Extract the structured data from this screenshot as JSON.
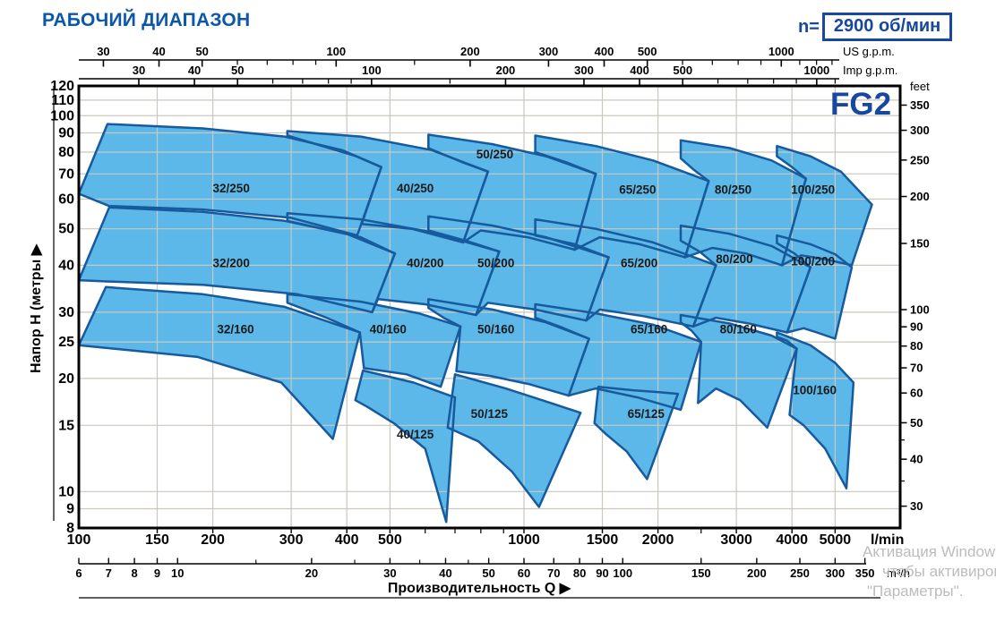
{
  "header": {
    "title": "РАБОЧИЙ ДИАПАЗОН",
    "speed_label": "n=",
    "speed_value": "2900 об/мин"
  },
  "model_label": "FG2",
  "watermark": {
    "line1": "Активация Windows",
    "line2": "чтобы активировать",
    "line3": "\"Параметры\"."
  },
  "colors": {
    "title_blue": "#0d57a9",
    "accent_blue": "#17479e",
    "region_fill": "#5bb8e8",
    "region_stroke": "#175a9d",
    "grid": "#ccc7bf",
    "axis_black": "#000000",
    "label_dark": "#1a1a1a",
    "watermark_gray": "#bcbcbc"
  },
  "chart_data": {
    "type": "area",
    "title": "РАБОЧИЙ ДИАПАЗОН",
    "x_label": "Производительность Q  ▶",
    "x_range_lmin": [
      100,
      7000
    ],
    "y_range_m": [
      8,
      120
    ],
    "axes": {
      "us_gpm": {
        "unit": "US g.p.m.",
        "factor_to_lmin": 3.785,
        "majors": [
          30,
          40,
          50,
          100,
          200,
          300,
          400,
          500,
          1000
        ],
        "minors": [
          60,
          70,
          80,
          90,
          150,
          600,
          700,
          800,
          900,
          1100,
          1200,
          1300,
          1400,
          1500
        ]
      },
      "imp_gpm": {
        "unit": "Imp g.p.m.",
        "factor_to_lmin": 4.546,
        "majors": [
          30,
          40,
          50,
          100,
          200,
          300,
          400,
          500,
          1000
        ],
        "minors": [
          60,
          70,
          80,
          90,
          150,
          600,
          700,
          800,
          900,
          1100,
          1200
        ]
      },
      "lmin": {
        "unit": "l/min",
        "majors": [
          100,
          150,
          200,
          300,
          400,
          500,
          1000,
          1500,
          2000,
          3000,
          4000,
          5000
        ],
        "minors": [
          600,
          700,
          800,
          900,
          2500
        ]
      },
      "m3h": {
        "unit": "m³/h",
        "factor_to_lmin": 16.6667,
        "majors": [
          6,
          7,
          8,
          9,
          10,
          20,
          30,
          40,
          50,
          60,
          70,
          80,
          90,
          100,
          150,
          200,
          250,
          300,
          350
        ],
        "minors": [
          15,
          25,
          35,
          45
        ]
      },
      "meters": {
        "label": "Напор H (метры  ▶",
        "majors": [
          120,
          110,
          100,
          90,
          80,
          70,
          60,
          50,
          40,
          30,
          25,
          20,
          15,
          10,
          9,
          8
        ]
      },
      "feet": {
        "unit": "feet",
        "factor_to_m": 0.3048,
        "majors": [
          350,
          300,
          250,
          200,
          150,
          100,
          90,
          80,
          70,
          60,
          50,
          40,
          30
        ],
        "minors": [
          45,
          35
        ]
      }
    },
    "grid": {
      "v_lmin": [
        150,
        200,
        300,
        400,
        500,
        1000,
        1500,
        2000,
        3000,
        4000,
        5000
      ],
      "h_m": [
        110,
        100,
        90,
        80,
        70,
        60,
        50,
        40,
        30,
        25,
        20,
        15,
        10,
        9
      ]
    },
    "regions": [
      {
        "name": "32/250",
        "label_at": [
          220,
          64
        ],
        "polygon_q_h": [
          [
            100,
            62
          ],
          [
            116,
            95
          ],
          [
            190,
            92.5
          ],
          [
            290,
            88
          ],
          [
            390,
            81
          ],
          [
            478,
            73
          ],
          [
            422,
            48
          ],
          [
            300,
            53.5
          ],
          [
            190,
            56.3
          ],
          [
            117,
            57.5
          ]
        ]
      },
      {
        "name": "40/250",
        "label_at": [
          570,
          64
        ],
        "polygon_q_h": [
          [
            294,
            91
          ],
          [
            430,
            88
          ],
          [
            620,
            81
          ],
          [
            830,
            71
          ],
          [
            730,
            46
          ],
          [
            560,
            50
          ],
          [
            432,
            51.5
          ],
          [
            478,
            73
          ],
          [
            420,
            78
          ],
          [
            294,
            88.5
          ]
        ]
      },
      {
        "name": "50/250",
        "label_at": [
          860,
          79
        ],
        "polygon_q_h": [
          [
            610,
            89
          ],
          [
            850,
            84
          ],
          [
            1120,
            78
          ],
          [
            1450,
            70
          ],
          [
            1300,
            44
          ],
          [
            1020,
            47.5
          ],
          [
            800,
            49.5
          ],
          [
            730,
            46
          ],
          [
            830,
            71
          ],
          [
            730,
            75
          ],
          [
            610,
            82
          ]
        ]
      },
      {
        "name": "65/250",
        "label_at": [
          1800,
          63.5
        ],
        "polygon_q_h": [
          [
            1060,
            88.5
          ],
          [
            1450,
            83
          ],
          [
            1950,
            76
          ],
          [
            2600,
            67
          ],
          [
            2300,
            42
          ],
          [
            1820,
            45.5
          ],
          [
            1480,
            47.5
          ],
          [
            1300,
            44
          ],
          [
            1450,
            70
          ],
          [
            1250,
            75
          ],
          [
            1060,
            80
          ]
        ]
      },
      {
        "name": "80/250",
        "label_at": [
          2950,
          63.5
        ],
        "polygon_q_h": [
          [
            2250,
            86
          ],
          [
            2900,
            82
          ],
          [
            3600,
            76
          ],
          [
            4300,
            68
          ],
          [
            3800,
            40
          ],
          [
            3150,
            43
          ],
          [
            2650,
            44.5
          ],
          [
            2300,
            42
          ],
          [
            2600,
            67
          ],
          [
            2400,
            72
          ],
          [
            2250,
            77
          ]
        ]
      },
      {
        "name": "100/250",
        "label_at": [
          4460,
          63.5
        ],
        "polygon_q_h": [
          [
            3700,
            83
          ],
          [
            4400,
            78
          ],
          [
            5150,
            71
          ],
          [
            6050,
            58
          ],
          [
            5450,
            40
          ],
          [
            4750,
            41.5
          ],
          [
            4200,
            42.5
          ],
          [
            3800,
            40
          ],
          [
            4300,
            68
          ],
          [
            4000,
            73
          ],
          [
            3700,
            78
          ]
        ]
      },
      {
        "name": "32/200",
        "label_at": [
          220,
          40.5
        ],
        "polygon_q_h": [
          [
            100,
            36.5
          ],
          [
            117,
            57
          ],
          [
            190,
            55.5
          ],
          [
            290,
            52.5
          ],
          [
            400,
            48.5
          ],
          [
            513,
            43
          ],
          [
            456,
            30
          ],
          [
            310,
            33.5
          ],
          [
            190,
            35.5
          ],
          [
            117,
            36.2
          ]
        ]
      },
      {
        "name": "40/200",
        "label_at": [
          600,
          40.5
        ],
        "polygon_q_h": [
          [
            294,
            55
          ],
          [
            430,
            53
          ],
          [
            620,
            49
          ],
          [
            880,
            43.5
          ],
          [
            780,
            29.5
          ],
          [
            600,
            31.5
          ],
          [
            470,
            32.5
          ],
          [
            456,
            30
          ],
          [
            513,
            43
          ],
          [
            430,
            47.5
          ],
          [
            294,
            52.5
          ]
        ]
      },
      {
        "name": "50/200",
        "label_at": [
          865,
          40.5
        ],
        "polygon_q_h": [
          [
            610,
            54
          ],
          [
            850,
            51
          ],
          [
            1120,
            47.5
          ],
          [
            1550,
            42
          ],
          [
            1380,
            28.5
          ],
          [
            1060,
            30.5
          ],
          [
            830,
            31.8
          ],
          [
            780,
            29.5
          ],
          [
            880,
            43.5
          ],
          [
            740,
            46.5
          ],
          [
            610,
            49.5
          ]
        ]
      },
      {
        "name": "65/200",
        "label_at": [
          1815,
          40.5
        ],
        "polygon_q_h": [
          [
            1060,
            53
          ],
          [
            1450,
            50
          ],
          [
            1950,
            46
          ],
          [
            2700,
            40
          ],
          [
            2400,
            27.5
          ],
          [
            1850,
            29.3
          ],
          [
            1480,
            30.5
          ],
          [
            1380,
            28.5
          ],
          [
            1550,
            42
          ],
          [
            1300,
            45.5
          ],
          [
            1060,
            48
          ]
        ]
      },
      {
        "name": "80/200",
        "label_at": [
          2970,
          41.5
        ],
        "polygon_q_h": [
          [
            2250,
            51
          ],
          [
            2900,
            48.5
          ],
          [
            3600,
            45
          ],
          [
            4400,
            39.5
          ],
          [
            3900,
            26.5
          ],
          [
            3200,
            28
          ],
          [
            2700,
            29
          ],
          [
            2400,
            27.5
          ],
          [
            2700,
            40
          ],
          [
            2480,
            43.5
          ],
          [
            2250,
            46.5
          ]
        ]
      },
      {
        "name": "100/200",
        "label_at": [
          4460,
          41
        ],
        "polygon_q_h": [
          [
            3700,
            48
          ],
          [
            4400,
            45.5
          ],
          [
            5000,
            42.8
          ],
          [
            5450,
            39.5
          ],
          [
            5000,
            25.5
          ],
          [
            4550,
            26.5
          ],
          [
            4250,
            27.2
          ],
          [
            3900,
            26.5
          ],
          [
            4400,
            39.5
          ],
          [
            4050,
            43
          ],
          [
            3700,
            45.8
          ]
        ]
      },
      {
        "name": "32/160",
        "label_at": [
          225,
          27
        ],
        "polygon_q_h": [
          [
            100,
            24.5
          ],
          [
            115,
            35
          ],
          [
            190,
            33.5
          ],
          [
            290,
            31
          ],
          [
            428,
            26.5
          ],
          [
            372,
            13.8
          ],
          [
            285,
            19.5
          ],
          [
            185,
            22.8
          ]
        ]
      },
      {
        "name": "40/160",
        "label_at": [
          495,
          27
        ],
        "polygon_q_h": [
          [
            294,
            33.5
          ],
          [
            430,
            32
          ],
          [
            580,
            29.8
          ],
          [
            720,
            27.5
          ],
          [
            650,
            19
          ],
          [
            545,
            20.5
          ],
          [
            437,
            21.3
          ],
          [
            428,
            26.5
          ],
          [
            360,
            29
          ],
          [
            294,
            31.8
          ]
        ]
      },
      {
        "name": "50/160",
        "label_at": [
          865,
          27
        ],
        "polygon_q_h": [
          [
            610,
            32.5
          ],
          [
            850,
            30.5
          ],
          [
            1120,
            28.2
          ],
          [
            1400,
            25.5
          ],
          [
            1260,
            18
          ],
          [
            1030,
            19.3
          ],
          [
            840,
            20.3
          ],
          [
            705,
            20.9
          ],
          [
            720,
            27.5
          ],
          [
            660,
            29
          ],
          [
            610,
            30.8
          ]
        ]
      },
      {
        "name": "65/160",
        "label_at": [
          1910,
          27
        ],
        "polygon_q_h": [
          [
            1060,
            31.5
          ],
          [
            1450,
            29.8
          ],
          [
            1950,
            27.8
          ],
          [
            2500,
            25
          ],
          [
            2250,
            16.5
          ],
          [
            1800,
            17.8
          ],
          [
            1450,
            18.8
          ],
          [
            1280,
            18.1
          ],
          [
            1260,
            18
          ],
          [
            1400,
            25.5
          ],
          [
            1220,
            27.3
          ],
          [
            1060,
            29
          ]
        ]
      },
      {
        "name": "80/160",
        "label_at": [
          3030,
          27
        ],
        "polygon_q_h": [
          [
            2250,
            29.5
          ],
          [
            2900,
            28
          ],
          [
            3600,
            26
          ],
          [
            4100,
            24
          ],
          [
            3520,
            14.8
          ],
          [
            3060,
            17.5
          ],
          [
            2700,
            18.8
          ],
          [
            2460,
            17.2
          ],
          [
            2500,
            25
          ],
          [
            2380,
            26.8
          ],
          [
            2250,
            28.2
          ]
        ]
      },
      {
        "name": "100/160",
        "label_at": [
          4500,
          18.6
        ],
        "polygon_q_h": [
          [
            3700,
            26.5
          ],
          [
            4400,
            24.5
          ],
          [
            5000,
            22
          ],
          [
            5500,
            19.5
          ],
          [
            5300,
            10.2
          ],
          [
            4750,
            13
          ],
          [
            4250,
            15
          ],
          [
            3950,
            16
          ],
          [
            4100,
            24
          ],
          [
            3900,
            25.2
          ],
          [
            3700,
            25.8
          ]
        ]
      },
      {
        "name": "40/125",
        "label_at": [
          570,
          14.2
        ],
        "polygon_q_h": [
          [
            418,
            17.5
          ],
          [
            435,
            21
          ],
          [
            565,
            19.5
          ],
          [
            700,
            17.8
          ],
          [
            669,
            8.3
          ],
          [
            600,
            13
          ],
          [
            510,
            15.2
          ],
          [
            445,
            16.8
          ]
        ]
      },
      {
        "name": "50/125",
        "label_at": [
          836,
          16.1
        ],
        "polygon_q_h": [
          [
            674,
            14.8
          ],
          [
            700,
            20.5
          ],
          [
            910,
            18.8
          ],
          [
            1150,
            17.2
          ],
          [
            1340,
            16.2
          ],
          [
            1081,
            9.1
          ],
          [
            940,
            11.3
          ],
          [
            790,
            13.6
          ]
        ]
      },
      {
        "name": "65/125",
        "label_at": [
          1880,
          16.1
        ],
        "polygon_q_h": [
          [
            1440,
            15.2
          ],
          [
            1470,
            19
          ],
          [
            1760,
            18.6
          ],
          [
            2000,
            18.4
          ],
          [
            2218,
            18.2
          ],
          [
            1890,
            10.8
          ],
          [
            1700,
            12.8
          ],
          [
            1530,
            14.2
          ]
        ]
      }
    ]
  }
}
